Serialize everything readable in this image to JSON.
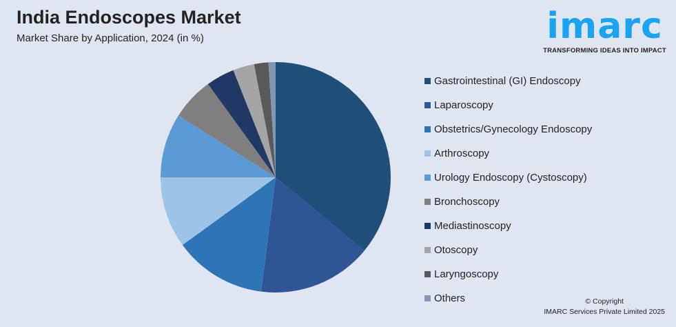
{
  "logo": {
    "word": "imarc",
    "tagline": "TRANSFORMING IDEAS INTO IMPACT"
  },
  "copyright": {
    "line1": "© Copyright",
    "line2": "IMARC Services Private Limited 2025"
  },
  "chart_data": {
    "type": "pie",
    "title": "India Endoscopes Market",
    "subtitle": "Market Share by Application, 2024 (in %)",
    "legend_position": "right",
    "categories": [
      "Gastrointestinal (GI) Endoscopy",
      "Laparoscopy",
      "Obstetrics/Gynecology Endoscopy",
      "Arthroscopy",
      "Urology Endoscopy (Cystoscopy)",
      "Bronchoscopy",
      "Mediastinoscopy",
      "Otoscopy",
      "Laryngoscopy",
      "Others"
    ],
    "values": [
      36,
      16,
      13,
      10,
      9,
      6,
      4,
      3,
      2,
      1
    ],
    "colors": [
      "#1f4e79",
      "#2f5597",
      "#2e75b6",
      "#9dc3e6",
      "#5b9bd5",
      "#7f7f7f",
      "#203864",
      "#a5a5a5",
      "#595959",
      "#8497b0"
    ]
  }
}
